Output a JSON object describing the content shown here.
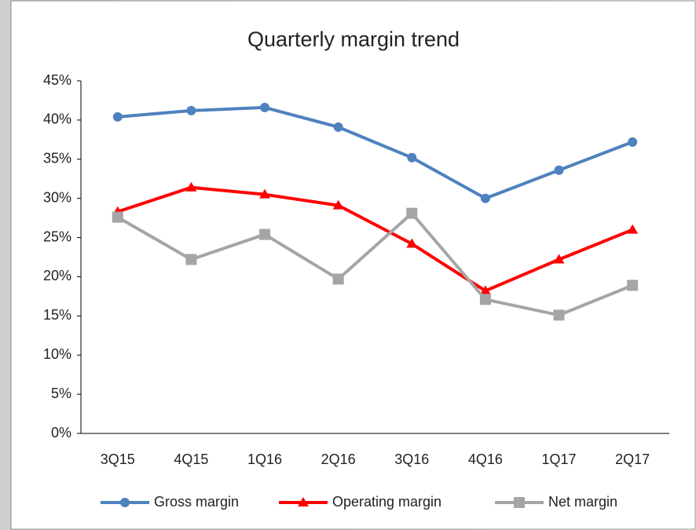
{
  "chart_data": {
    "type": "line",
    "title": "Quarterly margin trend",
    "categories": [
      "3Q15",
      "4Q15",
      "1Q16",
      "2Q16",
      "3Q16",
      "4Q16",
      "1Q17",
      "2Q17"
    ],
    "series": [
      {
        "name": "Gross margin",
        "color": "#4f81bd",
        "marker": "circle",
        "values": [
          40.4,
          41.2,
          41.6,
          39.1,
          35.2,
          30.0,
          33.6,
          37.2
        ]
      },
      {
        "name": "Operating margin",
        "color": "#ff0000",
        "marker": "triangle",
        "values": [
          28.3,
          31.4,
          30.5,
          29.1,
          24.2,
          18.2,
          22.2,
          26.0
        ]
      },
      {
        "name": "Net margin",
        "color": "#a5a5a5",
        "marker": "square",
        "values": [
          27.6,
          22.2,
          25.4,
          19.7,
          28.1,
          17.1,
          15.1,
          18.9
        ]
      }
    ],
    "ylim": [
      0,
      45
    ],
    "yticks": [
      {
        "value": 0,
        "label": "0%"
      },
      {
        "value": 5,
        "label": "5%"
      },
      {
        "value": 10,
        "label": "10%"
      },
      {
        "value": 15,
        "label": "15%"
      },
      {
        "value": 20,
        "label": "20%"
      },
      {
        "value": 25,
        "label": "25%"
      },
      {
        "value": 30,
        "label": "30%"
      },
      {
        "value": 35,
        "label": "35%"
      },
      {
        "value": 40,
        "label": "40%"
      },
      {
        "value": 45,
        "label": "45%"
      }
    ],
    "grid": false,
    "legend": "bottom"
  }
}
